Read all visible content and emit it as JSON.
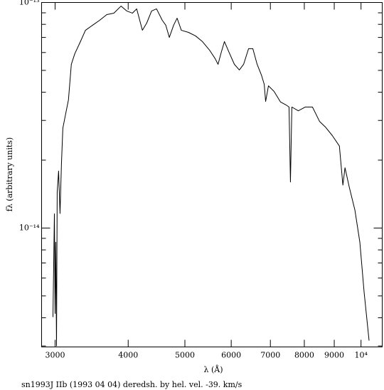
{
  "chart_data": {
    "type": "line",
    "title": "sn1993J IIb (1993 04 04) deredsh. by hel. vel.   -39. km/s",
    "x_label": "λ (Å)",
    "y_label": "fλ (arbitrary units)",
    "x_log": true,
    "y_log": true,
    "color": "#000000",
    "xlim": [
      2845,
      10870
    ],
    "ylim": [
      2.97e-15,
      1e-13
    ],
    "xticks": [
      3000,
      4000,
      5000,
      6000,
      7000,
      8000,
      9000,
      {
        "value": 10000,
        "label": "10⁴"
      }
    ],
    "yticks": [
      {
        "value": 1e-14,
        "label": "10⁻¹⁴"
      },
      {
        "value": 1e-13,
        "label": "10⁻¹³"
      }
    ],
    "yminorticks": [
      3e-15,
      4e-15,
      5e-15,
      6e-15,
      7e-15,
      8e-15,
      9e-15,
      2e-14,
      3e-14,
      4e-14,
      5e-14,
      6e-14,
      7e-14,
      8e-14,
      9e-14
    ],
    "x": [
      2975,
      2992,
      3000,
      3008,
      3017,
      3025,
      3042,
      3059,
      3076,
      3093,
      3127,
      3162,
      3198,
      3242,
      3306,
      3381,
      3477,
      3575,
      3677,
      3781,
      3889,
      3977,
      4067,
      4136,
      4230,
      4302,
      4386,
      4472,
      4574,
      4638,
      4703,
      4783,
      4849,
      4931,
      5071,
      5214,
      5357,
      5509,
      5634,
      5697,
      5761,
      5842,
      5941,
      6075,
      6195,
      6300,
      6424,
      6533,
      6644,
      6757,
      6832,
      6870,
      6947,
      7104,
      7285,
      7449,
      7533,
      7575,
      7617,
      7812,
      8033,
      8260,
      8494,
      8686,
      8932,
      9184,
      9311,
      9389,
      9547,
      9763,
      9954,
      10122,
      10322
    ],
    "values": [
      4.03e-15,
      1.156e-14,
      4.18e-15,
      8.65e-15,
      3e-15,
      1.44e-14,
      1.79e-14,
      1.16e-14,
      1.92e-14,
      2.77e-14,
      3.2e-14,
      3.7e-14,
      5.32e-14,
      5.93e-14,
      6.61e-14,
      7.53e-14,
      7.93e-14,
      8.34e-14,
      8.84e-14,
      8.97e-14,
      9.64e-14,
      9.17e-14,
      8.97e-14,
      9.37e-14,
      7.53e-14,
      8.1e-14,
      9.17e-14,
      9.37e-14,
      8.34e-14,
      7.93e-14,
      7e-14,
      7.93e-14,
      8.52e-14,
      7.53e-14,
      7.37e-14,
      7.11e-14,
      6.71e-14,
      6.15e-14,
      5.63e-14,
      5.32e-14,
      5.93e-14,
      6.71e-14,
      6.06e-14,
      5.32e-14,
      5.02e-14,
      5.32e-14,
      6.24e-14,
      6.24e-14,
      5.32e-14,
      4.77e-14,
      4.34e-14,
      3.64e-14,
      4.27e-14,
      4.03e-14,
      3.62e-14,
      3.51e-14,
      3.44e-14,
      1.6e-14,
      3.44e-14,
      3.31e-14,
      3.44e-14,
      3.44e-14,
      2.97e-14,
      2.81e-14,
      2.57e-14,
      2.31e-14,
      1.55e-14,
      1.85e-14,
      1.52e-14,
      1.2e-14,
      8.65e-15,
      5.2e-15,
      3.17e-15
    ]
  }
}
